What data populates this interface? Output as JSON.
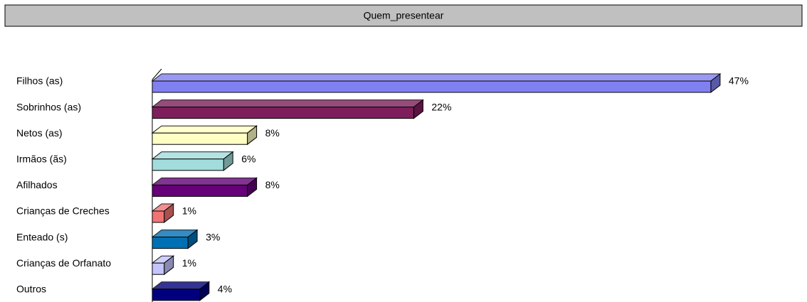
{
  "chart_data": {
    "type": "bar3d_horizontal",
    "title": "Quem_presentear",
    "categories": [
      "Filhos (as)",
      "Sobrinhos (as)",
      "Netos (as)",
      "Irmãos (ãs)",
      "Afilhados",
      "Crianças de Creches",
      "Enteado (s)",
      "Crianças de Orfanato",
      "Outros"
    ],
    "values": [
      47,
      22,
      8,
      6,
      8,
      1,
      3,
      1,
      4
    ],
    "value_labels": [
      "47%",
      "22%",
      "8%",
      "6%",
      "8%",
      "1%",
      "3%",
      "1%",
      "4%"
    ],
    "colors": [
      "#8080f0",
      "#7e1f5c",
      "#ffffc4",
      "#a2dcdc",
      "#650078",
      "#f07474",
      "#0070b4",
      "#c4c4ff",
      "#00007e"
    ]
  }
}
